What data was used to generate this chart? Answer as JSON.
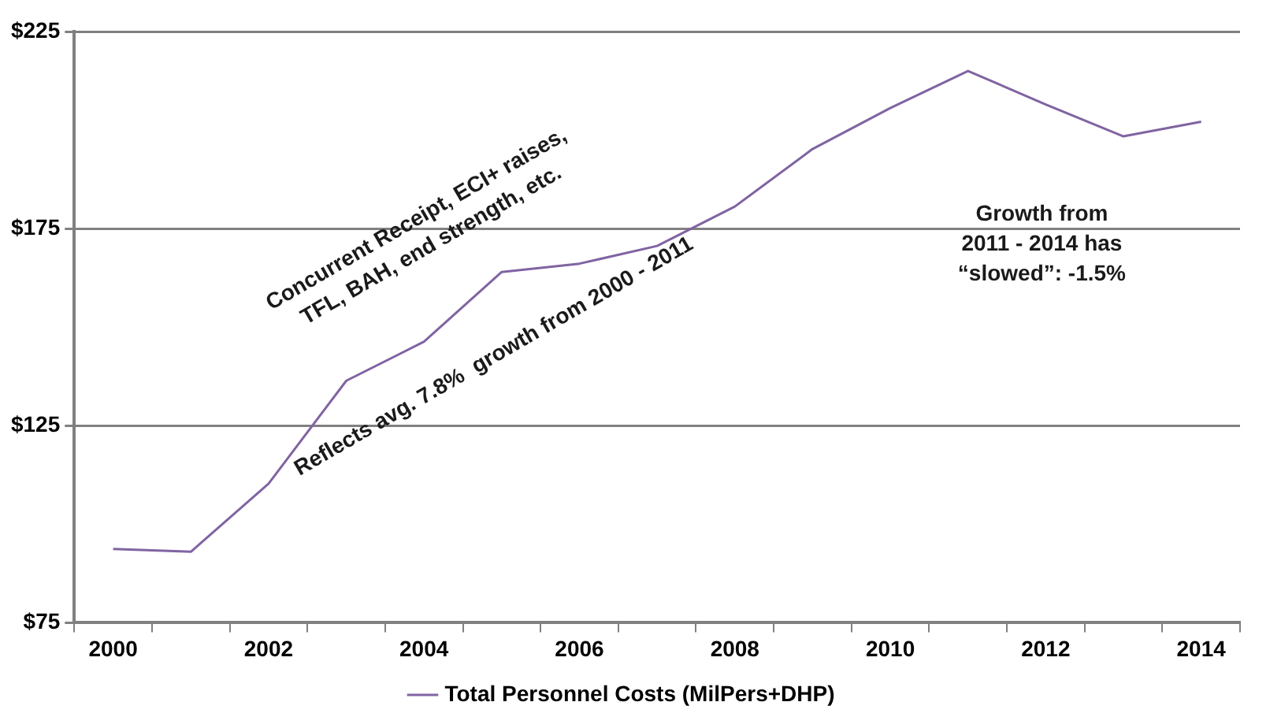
{
  "chart_data": {
    "type": "line",
    "categories": [
      "2000",
      null,
      "2002",
      null,
      "2004",
      null,
      "2006",
      null,
      "2008",
      null,
      "2010",
      null,
      "2012",
      null,
      "2014"
    ],
    "series": [
      {
        "name": "Total Personnel Costs (MilPers+DHP)",
        "color": "#8064a2",
        "values": [
          93.7,
          93.0,
          110.3,
          136.4,
          146.3,
          164.0,
          166.1,
          170.6,
          180.6,
          195.2,
          205.6,
          215.0,
          206.5,
          198.4,
          202.1
        ]
      }
    ],
    "ylim": [
      75,
      225
    ],
    "yticks": [
      {
        "value": 75,
        "label": "$75"
      },
      {
        "value": 125,
        "label": "$125"
      },
      {
        "value": 175,
        "label": "$175"
      },
      {
        "value": 225,
        "label": "$225"
      }
    ],
    "grid": "y",
    "legend": "bottom",
    "marker": "none",
    "line_style": "solid",
    "annotations": [
      "Concurrent Receipt, ECI+ raises,\nTFL, BAH, end strength, etc.",
      "Reflects avg. 7.8%  growth from 2000 - 2011",
      "Growth from\n2011 - 2014 has\n“slowed”: -1.5%"
    ]
  }
}
